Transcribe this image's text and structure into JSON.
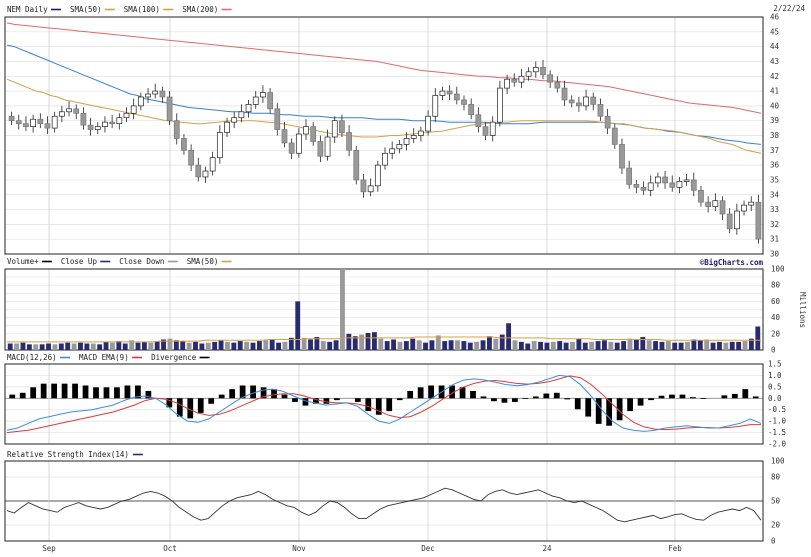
{
  "header": {
    "date": "2/22/24"
  },
  "watermark": "©BigCharts.com",
  "chart_data": [
    {
      "type": "line",
      "panel": "price",
      "legend": [
        {
          "label": "NEM Daily",
          "color": "#1a1a6e"
        },
        {
          "label": "SMA(50)",
          "color": "#d4a04a"
        },
        {
          "label": "SMA(100)",
          "color": "#d4a04a"
        },
        {
          "label": "SMA(200)",
          "color": "#e06a6a"
        }
      ],
      "y_ticks": [
        30,
        31,
        32,
        33,
        34,
        35,
        36,
        37,
        38,
        39,
        40,
        41,
        42,
        43,
        44,
        45,
        46
      ],
      "ylim": [
        30,
        46
      ],
      "x_ticks": [
        "Sep",
        "Oct",
        "Nov",
        "Dec",
        "24",
        "Feb"
      ],
      "candles_close": [
        39.0,
        38.8,
        38.6,
        39.1,
        38.8,
        38.5,
        39.3,
        39.6,
        39.8,
        39.5,
        38.7,
        38.4,
        38.6,
        38.9,
        38.8,
        39.2,
        39.5,
        40.0,
        40.6,
        40.8,
        41.0,
        40.6,
        39.0,
        37.8,
        37.0,
        36.0,
        35.2,
        35.6,
        36.5,
        38.2,
        38.9,
        39.2,
        39.6,
        40.1,
        40.6,
        40.9,
        39.8,
        38.4,
        37.5,
        36.8,
        38.1,
        38.6,
        37.6,
        36.6,
        37.9,
        39.0,
        38.2,
        37.0,
        35.0,
        34.2,
        34.6,
        36.0,
        36.8,
        37.1,
        37.4,
        37.8,
        38.0,
        38.3,
        39.3,
        40.7,
        41.0,
        40.8,
        40.4,
        40.1,
        39.4,
        38.6,
        38.0,
        38.9,
        41.2,
        41.8,
        41.6,
        42.0,
        42.3,
        42.6,
        42.1,
        41.6,
        41.2,
        40.4,
        40.2,
        40.0,
        40.6,
        40.1,
        39.3,
        38.5,
        37.4,
        35.8,
        34.7,
        34.5,
        34.3,
        34.8,
        35.2,
        34.8,
        34.5,
        34.9,
        35.0,
        34.3,
        33.5,
        33.2,
        33.6,
        32.7,
        31.7,
        32.9,
        33.3,
        33.5,
        31.0
      ],
      "sma50": [
        41.8,
        41.6,
        41.4,
        41.2,
        41.0,
        40.9,
        40.7,
        40.6,
        40.4,
        40.3,
        40.2,
        40.1,
        40.0,
        39.9,
        39.8,
        39.7,
        39.6,
        39.5,
        39.4,
        39.3,
        39.2,
        39.1,
        39.0,
        38.95,
        38.9,
        38.85,
        38.8,
        38.8,
        38.85,
        38.9,
        38.95,
        39.0,
        39.0,
        39.0,
        39.0,
        38.95,
        38.9,
        38.85,
        38.8,
        38.7,
        38.6,
        38.5,
        38.4,
        38.3,
        38.2,
        38.1,
        38.05,
        38.0,
        37.95,
        37.9,
        37.9,
        37.9,
        37.95,
        38.0,
        38.0,
        38.05,
        38.1,
        38.15,
        38.2,
        38.25,
        38.3,
        38.4,
        38.5,
        38.6,
        38.7,
        38.75,
        38.8,
        38.85,
        38.9,
        38.9,
        38.95,
        39.0,
        39.0,
        39.0,
        39.0,
        39.0,
        39.0,
        39.0,
        39.0,
        39.0,
        39.0,
        38.95,
        38.9,
        38.85,
        38.8,
        38.8,
        38.7,
        38.6,
        38.5,
        38.45,
        38.4,
        38.35,
        38.3,
        38.2,
        38.1,
        38.0,
        37.9,
        37.8,
        37.6,
        37.5,
        37.4,
        37.2,
        37.0,
        36.9,
        36.8
      ],
      "sma100": [
        44.1,
        44.0,
        43.8,
        43.6,
        43.4,
        43.2,
        43.0,
        42.8,
        42.6,
        42.4,
        42.2,
        42.0,
        41.8,
        41.6,
        41.4,
        41.2,
        41.0,
        40.8,
        40.7,
        40.5,
        40.4,
        40.3,
        40.2,
        40.1,
        40.0,
        39.9,
        39.85,
        39.8,
        39.75,
        39.7,
        39.65,
        39.6,
        39.6,
        39.55,
        39.5,
        39.5,
        39.5,
        39.45,
        39.4,
        39.4,
        39.35,
        39.3,
        39.3,
        39.3,
        39.25,
        39.2,
        39.2,
        39.2,
        39.2,
        39.2,
        39.15,
        39.1,
        39.1,
        39.1,
        39.1,
        39.05,
        39.0,
        39.0,
        39.0,
        39.0,
        38.95,
        38.9,
        38.9,
        38.9,
        38.9,
        38.9,
        38.9,
        38.85,
        38.8,
        38.8,
        38.8,
        38.8,
        38.8,
        38.85,
        38.9,
        38.9,
        38.9,
        38.9,
        38.9,
        38.9,
        38.9,
        38.9,
        38.9,
        38.85,
        38.8,
        38.75,
        38.7,
        38.6,
        38.5,
        38.45,
        38.4,
        38.3,
        38.25,
        38.2,
        38.1,
        38.0,
        37.95,
        37.9,
        37.8,
        37.7,
        37.65,
        37.6,
        37.5,
        37.45,
        37.4
      ],
      "sma200": [
        45.6,
        45.5,
        45.45,
        45.4,
        45.35,
        45.3,
        45.25,
        45.2,
        45.15,
        45.1,
        45.05,
        45.0,
        44.95,
        44.9,
        44.85,
        44.8,
        44.75,
        44.7,
        44.65,
        44.6,
        44.55,
        44.5,
        44.45,
        44.4,
        44.35,
        44.3,
        44.25,
        44.2,
        44.15,
        44.1,
        44.05,
        44.0,
        43.95,
        43.9,
        43.85,
        43.8,
        43.75,
        43.7,
        43.65,
        43.6,
        43.55,
        43.5,
        43.45,
        43.4,
        43.35,
        43.3,
        43.25,
        43.2,
        43.15,
        43.1,
        43.05,
        43.0,
        42.9,
        42.8,
        42.7,
        42.6,
        42.5,
        42.4,
        42.35,
        42.3,
        42.25,
        42.2,
        42.15,
        42.1,
        42.05,
        42.0,
        42.0,
        41.95,
        41.9,
        41.9,
        41.85,
        41.8,
        41.8,
        41.75,
        41.7,
        41.7,
        41.65,
        41.6,
        41.55,
        41.5,
        41.45,
        41.4,
        41.35,
        41.3,
        41.2,
        41.1,
        41.0,
        40.9,
        40.8,
        40.7,
        40.6,
        40.5,
        40.4,
        40.3,
        40.2,
        40.15,
        40.1,
        40.05,
        40.0,
        39.95,
        39.9,
        39.8,
        39.7,
        39.6,
        39.5
      ]
    },
    {
      "type": "bar",
      "panel": "volume",
      "legend": [
        {
          "label": "Volume+",
          "color": "#000000"
        },
        {
          "label": "Close Up",
          "color": "#2a2a6e"
        },
        {
          "label": "Close Down",
          "color": "#999999"
        },
        {
          "label": "SMA(50)",
          "color": "#d4a04a"
        }
      ],
      "ylabel": "Millions",
      "y_ticks": [
        0,
        10,
        20,
        30,
        40,
        50,
        60,
        70,
        80,
        90,
        100
      ],
      "ylim": [
        0,
        100
      ],
      "values": [
        8,
        8,
        9,
        7,
        7,
        7,
        8,
        7,
        8,
        9,
        8,
        9,
        8,
        8,
        7,
        10,
        9,
        11,
        8,
        12,
        9,
        10,
        9,
        11,
        13,
        14,
        12,
        11,
        9,
        10,
        8,
        9,
        10,
        12,
        10,
        9,
        11,
        10,
        9,
        11,
        12,
        13,
        9,
        10,
        15,
        60,
        15,
        13,
        16,
        11,
        10,
        12,
        100,
        20,
        17,
        19,
        21,
        22,
        14,
        11,
        13,
        10,
        11,
        14,
        12,
        9,
        12,
        18,
        11,
        12,
        12,
        11,
        9,
        10,
        12,
        17,
        14,
        19,
        33,
        12,
        10,
        8,
        11,
        10,
        9,
        10,
        11,
        9,
        10,
        14,
        9,
        10,
        11,
        12,
        10,
        9,
        11,
        14,
        13,
        16,
        12,
        11,
        10,
        11,
        9,
        9,
        10,
        13,
        12,
        13,
        9,
        10,
        9,
        10,
        10,
        11,
        14,
        29
      ],
      "sma50": [
        10,
        10,
        10,
        10,
        10,
        10,
        10,
        10,
        10,
        10,
        10,
        10,
        10,
        10,
        10,
        10,
        10,
        10,
        10,
        10,
        10,
        10,
        10,
        10,
        11,
        11,
        11,
        11,
        11,
        11,
        11,
        12,
        12,
        12,
        12,
        12,
        12,
        12,
        12,
        12,
        12,
        13,
        13,
        13,
        13,
        13,
        13,
        14,
        14,
        14,
        14,
        14,
        14,
        15,
        15,
        15,
        15,
        15,
        15,
        15,
        15,
        15,
        15,
        15,
        16,
        16,
        16,
        16,
        16,
        16,
        16,
        16,
        16,
        16,
        16,
        16,
        16,
        15,
        15,
        15,
        15,
        15,
        15,
        15,
        15,
        14,
        14,
        14,
        14,
        14,
        14,
        14,
        13,
        13,
        13,
        13,
        13,
        13,
        13,
        13,
        13,
        13,
        13,
        12,
        12,
        12,
        12,
        12,
        12,
        12,
        12,
        12,
        12,
        12,
        12,
        12,
        12,
        12,
        12
      ]
    },
    {
      "type": "line",
      "panel": "macd",
      "legend": [
        {
          "label": "MACD(12,26)",
          "color": "#3a8fe0"
        },
        {
          "label": "MACD EMA(9)",
          "color": "#e03a3a"
        },
        {
          "label": "Divergence",
          "color": "#000000"
        }
      ],
      "y_ticks": [
        1.5,
        1.0,
        0.5,
        0.0,
        -0.5,
        -1.0,
        -1.5,
        -2.0
      ],
      "ylim": [
        -2.0,
        1.5
      ],
      "macd": [
        -1.4,
        -1.3,
        -1.1,
        -0.9,
        -0.8,
        -0.7,
        -0.6,
        -0.55,
        -0.5,
        -0.4,
        -0.3,
        -0.1,
        0.05,
        0.1,
        0.0,
        -0.3,
        -0.7,
        -1.0,
        -1.05,
        -0.9,
        -0.6,
        -0.3,
        0.0,
        0.2,
        0.35,
        0.4,
        0.3,
        0.1,
        -0.1,
        -0.2,
        -0.3,
        -0.25,
        -0.2,
        -0.35,
        -0.7,
        -1.0,
        -1.1,
        -0.9,
        -0.6,
        -0.3,
        0.0,
        0.3,
        0.6,
        0.8,
        0.85,
        0.8,
        0.7,
        0.6,
        0.55,
        0.6,
        0.7,
        0.85,
        1.0,
        0.95,
        0.6,
        0.1,
        -0.5,
        -1.0,
        -1.3,
        -1.4,
        -1.45,
        -1.4,
        -1.3,
        -1.25,
        -1.2,
        -1.25,
        -1.3,
        -1.3,
        -1.2,
        -1.1,
        -0.9,
        -1.1
      ],
      "signal": [
        -1.5,
        -1.45,
        -1.4,
        -1.3,
        -1.2,
        -1.1,
        -1.0,
        -0.9,
        -0.8,
        -0.7,
        -0.6,
        -0.45,
        -0.3,
        -0.1,
        0.0,
        -0.05,
        -0.2,
        -0.45,
        -0.65,
        -0.75,
        -0.7,
        -0.55,
        -0.35,
        -0.15,
        0.05,
        0.15,
        0.2,
        0.2,
        0.1,
        -0.05,
        -0.15,
        -0.2,
        -0.2,
        -0.25,
        -0.35,
        -0.55,
        -0.75,
        -0.85,
        -0.8,
        -0.6,
        -0.35,
        -0.05,
        0.25,
        0.5,
        0.65,
        0.75,
        0.78,
        0.72,
        0.65,
        0.62,
        0.65,
        0.72,
        0.85,
        0.98,
        0.9,
        0.6,
        0.2,
        -0.25,
        -0.7,
        -1.05,
        -1.25,
        -1.35,
        -1.37,
        -1.35,
        -1.3,
        -1.28,
        -1.28,
        -1.3,
        -1.28,
        -1.22,
        -1.15,
        -1.15
      ]
    },
    {
      "type": "line",
      "panel": "rsi",
      "legend": [
        {
          "label": "Relative Strength Index(14)",
          "color": "#2a2a6e"
        }
      ],
      "y_ticks": [
        100,
        80,
        50,
        20,
        0
      ],
      "ylim": [
        0,
        100
      ],
      "reference_level": 50,
      "values": [
        38,
        35,
        42,
        48,
        44,
        40,
        38,
        36,
        42,
        45,
        48,
        44,
        42,
        40,
        42,
        46,
        50,
        52,
        56,
        60,
        62,
        60,
        56,
        50,
        42,
        36,
        30,
        26,
        28,
        36,
        44,
        50,
        54,
        56,
        58,
        62,
        58,
        52,
        48,
        44,
        42,
        36,
        32,
        36,
        44,
        50,
        48,
        42,
        34,
        28,
        28,
        34,
        40,
        44,
        46,
        48,
        50,
        52,
        54,
        58,
        62,
        66,
        64,
        60,
        56,
        52,
        50,
        58,
        62,
        64,
        60,
        58,
        60,
        62,
        64,
        60,
        56,
        54,
        50,
        48,
        50,
        46,
        42,
        38,
        32,
        26,
        24,
        26,
        28,
        30,
        32,
        28,
        30,
        33,
        34,
        30,
        27,
        26,
        32,
        36,
        38,
        40,
        38,
        42,
        38,
        26
      ]
    }
  ]
}
